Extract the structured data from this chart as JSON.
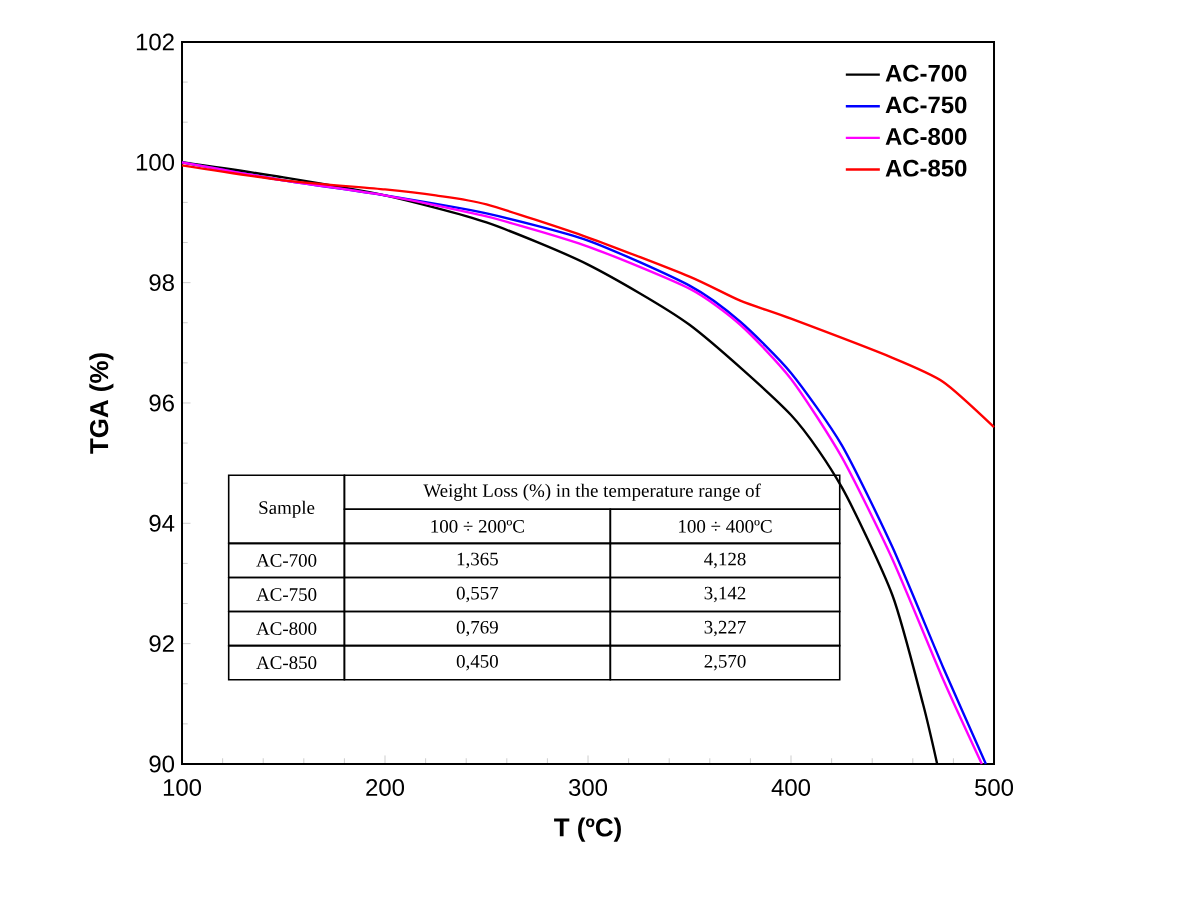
{
  "chart_data": {
    "type": "line",
    "xlabel": "T (ºC)",
    "ylabel": "TGA (%)",
    "xlim": [
      100,
      500
    ],
    "ylim": [
      90,
      102
    ],
    "xticks": [
      100,
      200,
      300,
      400,
      500
    ],
    "yticks": [
      90,
      92,
      94,
      96,
      98,
      100,
      102
    ],
    "legend": "top right",
    "grid": false,
    "marker": "none",
    "line_style": "solid",
    "series": [
      {
        "name": "AC-700",
        "color": "#000000",
        "x": [
          100,
          150,
          200,
          250,
          300,
          350,
          400,
          425,
          450,
          465,
          472
        ],
        "values": [
          100,
          99.75,
          99.45,
          99.0,
          98.3,
          97.3,
          95.8,
          94.6,
          92.8,
          91.0,
          90
        ]
      },
      {
        "name": "AC-750",
        "color": "#0000ff",
        "x": [
          100,
          150,
          200,
          250,
          300,
          350,
          375,
          400,
          425,
          450,
          475,
          496
        ],
        "values": [
          100,
          99.7,
          99.45,
          99.15,
          98.7,
          97.95,
          97.35,
          96.5,
          95.3,
          93.6,
          91.6,
          90
        ]
      },
      {
        "name": "AC-800",
        "color": "#ff00ff",
        "x": [
          100,
          150,
          200,
          250,
          300,
          350,
          375,
          400,
          425,
          450,
          475,
          494
        ],
        "values": [
          100,
          99.7,
          99.45,
          99.1,
          98.6,
          97.9,
          97.3,
          96.4,
          95.1,
          93.4,
          91.4,
          90
        ]
      },
      {
        "name": "AC-850",
        "color": "#ff0000",
        "x": [
          100,
          150,
          200,
          225,
          250,
          300,
          350,
          375,
          400,
          450,
          475,
          500
        ],
        "values": [
          99.95,
          99.7,
          99.55,
          99.45,
          99.3,
          98.75,
          98.1,
          97.7,
          97.4,
          96.75,
          96.35,
          95.6
        ]
      }
    ],
    "annotations": [
      "Sample",
      "Weight Loss (%) in the temperature range of",
      "100 ÷ 200ºC",
      "100 ÷ 400ºC",
      "AC-700",
      "1,365",
      "4,128",
      "AC-750",
      "0,557",
      "3,142",
      "AC-800",
      "0,769",
      "3,227",
      "AC-850",
      "0,450",
      "2,570"
    ]
  }
}
